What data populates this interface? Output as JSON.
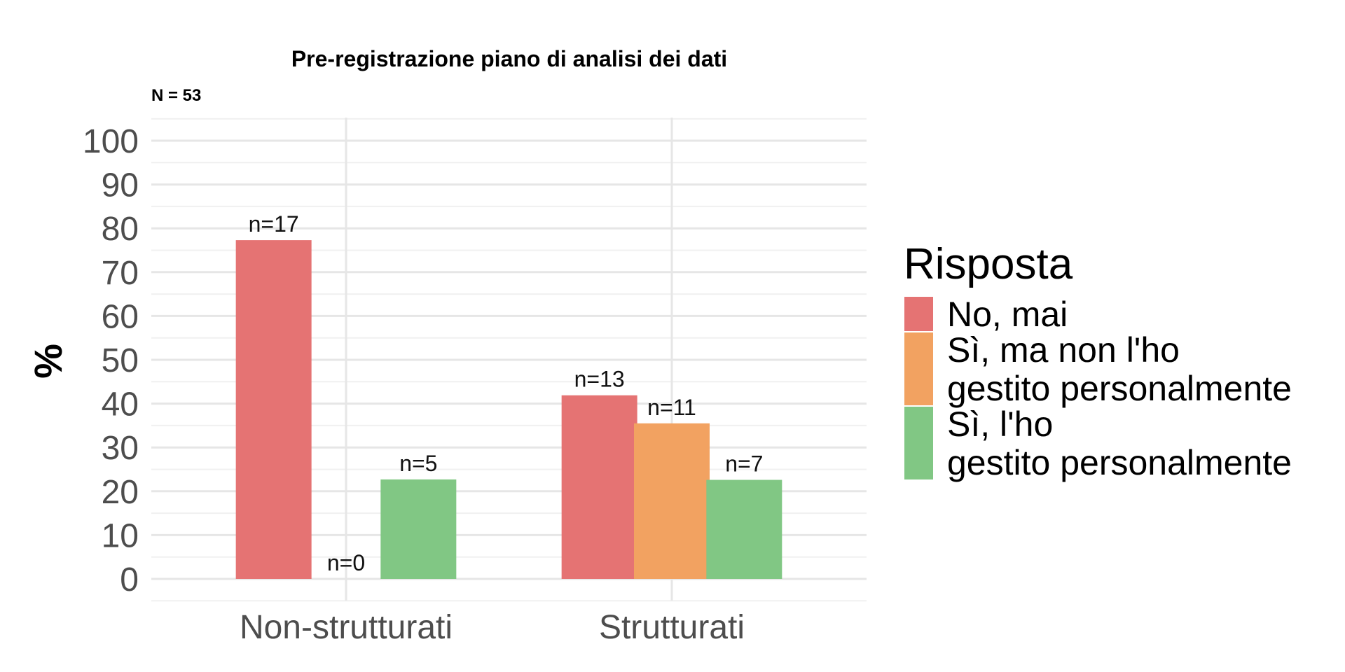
{
  "chart_data": {
    "type": "bar",
    "title": "Pre-registrazione piano di analisi dei dati",
    "subtitle": "N = 53",
    "xlabel": "",
    "ylabel": "%",
    "ylim": [
      0,
      100
    ],
    "yticks": [
      0,
      10,
      20,
      30,
      40,
      50,
      60,
      70,
      80,
      90,
      100
    ],
    "categories": [
      "Non-strutturati",
      "Strutturati"
    ],
    "series": [
      {
        "name": "No, mai",
        "color": "#E57373",
        "values": [
          77.3,
          41.9
        ],
        "labels": [
          "n=17",
          "n=13"
        ]
      },
      {
        "name": "Sì, ma non l'ho gestito personalmente",
        "color": "#F2A261",
        "values": [
          0,
          35.5
        ],
        "labels": [
          "n=0",
          "n=11"
        ]
      },
      {
        "name": "Sì, l'ho gestito personalmente",
        "color": "#81C784",
        "values": [
          22.7,
          22.6
        ],
        "labels": [
          "n=5",
          "n=7"
        ]
      }
    ],
    "grid": true,
    "legend": {
      "title": "Risposta",
      "position": "right",
      "entries": [
        {
          "lines": [
            "No, mai"
          ]
        },
        {
          "lines": [
            "Sì, ma non l'ho",
            "gestito personalmente"
          ]
        },
        {
          "lines": [
            "Sì, l'ho",
            "gestito personalmente"
          ]
        }
      ]
    }
  }
}
